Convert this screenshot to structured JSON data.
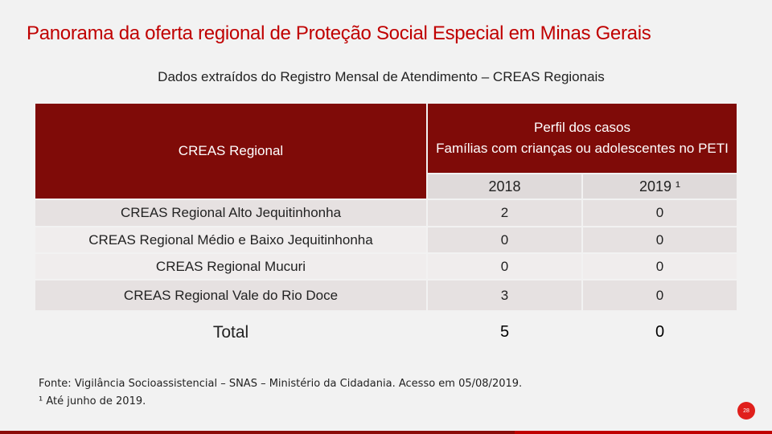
{
  "title": "Panorama da oferta regional de Proteção Social Especial em Minas Gerais",
  "subtitle": "Dados extraídos do Registro Mensal de Atendimento – CREAS Regionais",
  "table": {
    "col_header": "CREAS Regional",
    "group_header": "Perfil dos casos\nFamílias com crianças ou adolescentes no PETI",
    "years": [
      "2018",
      "2019 ¹"
    ],
    "rows": [
      {
        "name": "CREAS Regional Alto Jequitinhonha",
        "v2018": "2",
        "v2019": "0"
      },
      {
        "name": "CREAS Regional Médio e Baixo Jequitinhonha",
        "v2018": "0",
        "v2019": "0"
      },
      {
        "name": "CREAS Regional Mucuri",
        "v2018": "0",
        "v2019": "0"
      },
      {
        "name": "CREAS Regional Vale do Rio Doce",
        "v2018": "3",
        "v2019": "0"
      }
    ],
    "total": {
      "name": "Total",
      "v2018": "5",
      "v2019": "0"
    }
  },
  "footnote": {
    "source": "Fonte: Vigilância Socioassistencial – SNAS – Ministério da Cidadania. Acesso em 05/08/2019.",
    "note": "¹ Até junho de 2019."
  },
  "page_number": "28",
  "colors": {
    "accent": "#c00000",
    "header_fill": "#7f0b08"
  }
}
